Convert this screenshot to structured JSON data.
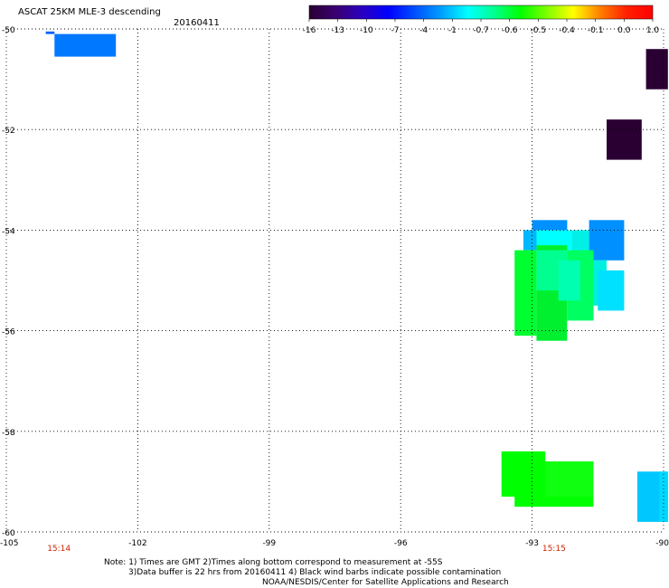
{
  "header": {
    "title": "ASCAT 25KM MLE-3 descending",
    "date": "20160411"
  },
  "colorbar": {
    "tick_labels": [
      "-16",
      "-13",
      "-10",
      "-7",
      "-4",
      "-1",
      "-0.7",
      "-0.6",
      "-0.5",
      "-0.4",
      "-0.1",
      "0.0",
      "1.0"
    ],
    "colors": [
      "#2a0032",
      "#3a0070",
      "#2a00c0",
      "#0000ff",
      "#0050ff",
      "#00a0ff",
      "#00ffff",
      "#00ff90",
      "#00ff00",
      "#80ff00",
      "#ffff00",
      "#ff8000",
      "#ff2000",
      "#ff0000"
    ]
  },
  "map": {
    "lon_range": [
      -105,
      -90
    ],
    "lat_range": [
      -60,
      -50
    ],
    "lon_ticks": [
      -105,
      -102,
      -99,
      -96,
      -93,
      -90
    ],
    "lon_tick_labels": [
      "-105",
      "-102",
      "-99",
      "-96",
      "-93",
      "-90"
    ],
    "lat_ticks": [
      -50,
      -52,
      -54,
      -56,
      -58,
      -60
    ],
    "lat_tick_labels": [
      "-50",
      "-52",
      "-54",
      "-56",
      "-58",
      "-60"
    ],
    "time_labels": [
      {
        "lon": -103.8,
        "text": "15:14"
      },
      {
        "lon": -92.5,
        "text": "15:15"
      }
    ],
    "time_label_color": "#cc2200",
    "grid_color": "#000000",
    "cells": [
      {
        "lon": [
          -104.1,
          -103.9
        ],
        "lat": [
          -50.1,
          -50.05
        ],
        "color": "#0060ff"
      },
      {
        "lon": [
          -103.9,
          -102.5
        ],
        "lat": [
          -50.1,
          -50.55
        ],
        "color": "#0078ff"
      },
      {
        "lon": [
          -90.4,
          -89.9
        ],
        "lat": [
          -50.4,
          -51.2
        ],
        "color": "#2a0032"
      },
      {
        "lon": [
          -91.3,
          -90.5
        ],
        "lat": [
          -51.8,
          -52.6
        ],
        "color": "#2a0032"
      },
      {
        "lon": [
          -93.0,
          -92.2
        ],
        "lat": [
          -53.8,
          -54.0
        ],
        "color": "#0090ff"
      },
      {
        "lon": [
          -93.2,
          -92.8
        ],
        "lat": [
          -54.0,
          -54.4
        ],
        "color": "#00b8ff"
      },
      {
        "lon": [
          -92.9,
          -92.1
        ],
        "lat": [
          -54.0,
          -54.4
        ],
        "color": "#00ffff"
      },
      {
        "lon": [
          -92.1,
          -91.7
        ],
        "lat": [
          -54.0,
          -54.5
        ],
        "color": "#00f0e8"
      },
      {
        "lon": [
          -91.7,
          -90.9
        ],
        "lat": [
          -53.8,
          -54.6
        ],
        "color": "#0090ff"
      },
      {
        "lon": [
          -93.4,
          -92.9
        ],
        "lat": [
          -54.4,
          -56.1
        ],
        "color": "#00ff30"
      },
      {
        "lon": [
          -92.9,
          -92.2
        ],
        "lat": [
          -54.3,
          -56.2
        ],
        "color": "#00f030"
      },
      {
        "lon": [
          -92.9,
          -92.2
        ],
        "lat": [
          -54.4,
          -55.2
        ],
        "color": "#00ff90"
      },
      {
        "lon": [
          -92.2,
          -91.6
        ],
        "lat": [
          -54.4,
          -55.8
        ],
        "color": "#00ff60"
      },
      {
        "lon": [
          -92.4,
          -91.9
        ],
        "lat": [
          -54.6,
          -55.4
        ],
        "color": "#00ffb0"
      },
      {
        "lon": [
          -91.6,
          -91.3
        ],
        "lat": [
          -54.6,
          -55.5
        ],
        "color": "#00f0e0"
      },
      {
        "lon": [
          -91.5,
          -90.9
        ],
        "lat": [
          -54.8,
          -55.6
        ],
        "color": "#00e0ff"
      },
      {
        "lon": [
          -93.7,
          -92.7
        ],
        "lat": [
          -58.4,
          -59.3
        ],
        "color": "#00ff00"
      },
      {
        "lon": [
          -93.4,
          -91.6
        ],
        "lat": [
          -58.6,
          -59.5
        ],
        "color": "#00ff00"
      },
      {
        "lon": [
          -92.7,
          -91.6
        ],
        "lat": [
          -58.6,
          -59.3
        ],
        "color": "#10ff10"
      },
      {
        "lon": [
          -90.6,
          -89.9
        ],
        "lat": [
          -58.8,
          -59.8
        ],
        "color": "#00c8ff"
      },
      {
        "lon": [
          -90.1,
          -89.9
        ],
        "lat": [
          -58.8,
          -59.8
        ],
        "color": "#00d8ff"
      }
    ]
  },
  "notes": [
    "Note: 1) Times are GMT 2)Times along bottom correspond to measurement at -55S",
    "3)Data buffer is 22 hrs from 20160411 4) Black wind barbs indicate possible contamination",
    "NOAA/NESDIS/Center for Satellite Applications and Research"
  ]
}
